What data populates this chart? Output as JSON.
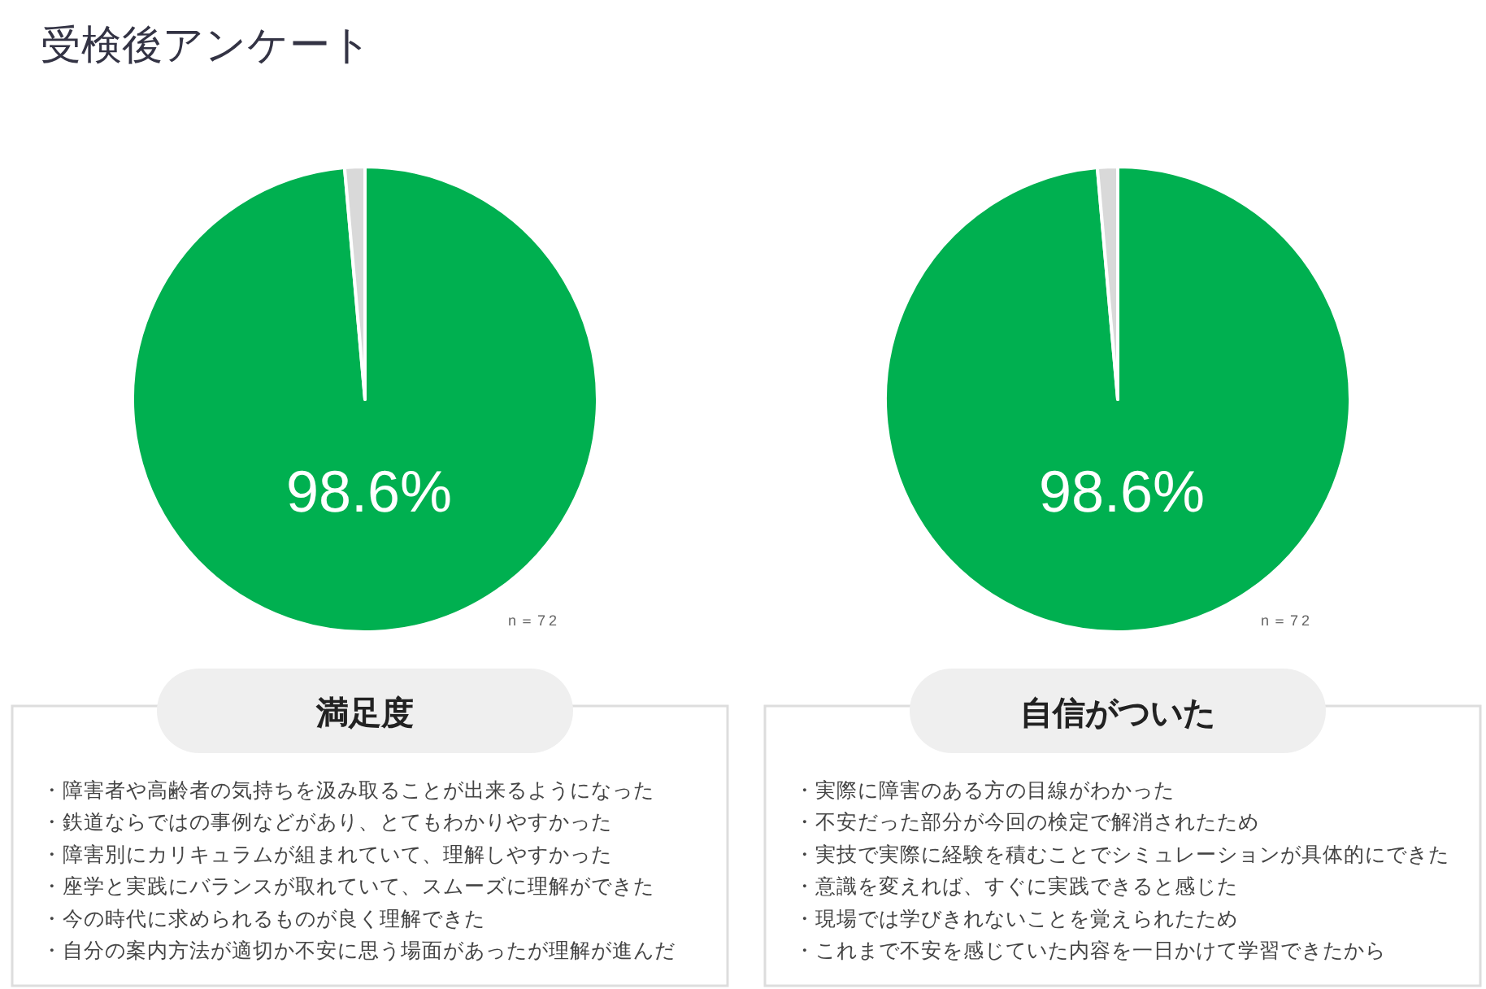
{
  "chart_data": [
    {
      "type": "other",
      "title": "受検後アンケート"
    },
    {
      "type": "pie",
      "title": "満足度",
      "categories": [
        null,
        null
      ],
      "values": [
        98.6,
        1.4
      ],
      "colors": [
        "#00b050",
        "#d9d9d9"
      ],
      "value_labels": [
        "98.6%",
        null
      ],
      "annotations": [
        "n＝72",
        "・障害者や高齢者の気持ちを汲み取ることが出来るようになった",
        "・鉄道ならではの事例などがあり、とてもわかりやすかった",
        "・障害別にカリキュラムが組まれていて、理解しやすかった",
        "・座学と実践にバランスが取れていて、スムーズに理解ができた",
        "・今の時代に求められるものが良く理解できた",
        "・自分の案内方法が適切か不安に思う場面があったが理解が進んだ"
      ]
    },
    {
      "type": "pie",
      "title": "自信がついた",
      "categories": [
        null,
        null
      ],
      "values": [
        98.6,
        1.4
      ],
      "colors": [
        "#00b050",
        "#d9d9d9"
      ],
      "value_labels": [
        "98.6%",
        null
      ],
      "annotations": [
        "n＝72",
        "・実際に障害のある方の目線がわかった",
        "・不安だった部分が今回の検定で解消されたため",
        "・実技で実際に経験を積むことでシミュレーションが具体的にできた",
        "・意識を変えれば、すぐに実践できると感じた",
        "・現場では学びきれないことを覚えられたため",
        "・これまで不安を感じていた内容を一日かけて学習できたから"
      ]
    }
  ]
}
